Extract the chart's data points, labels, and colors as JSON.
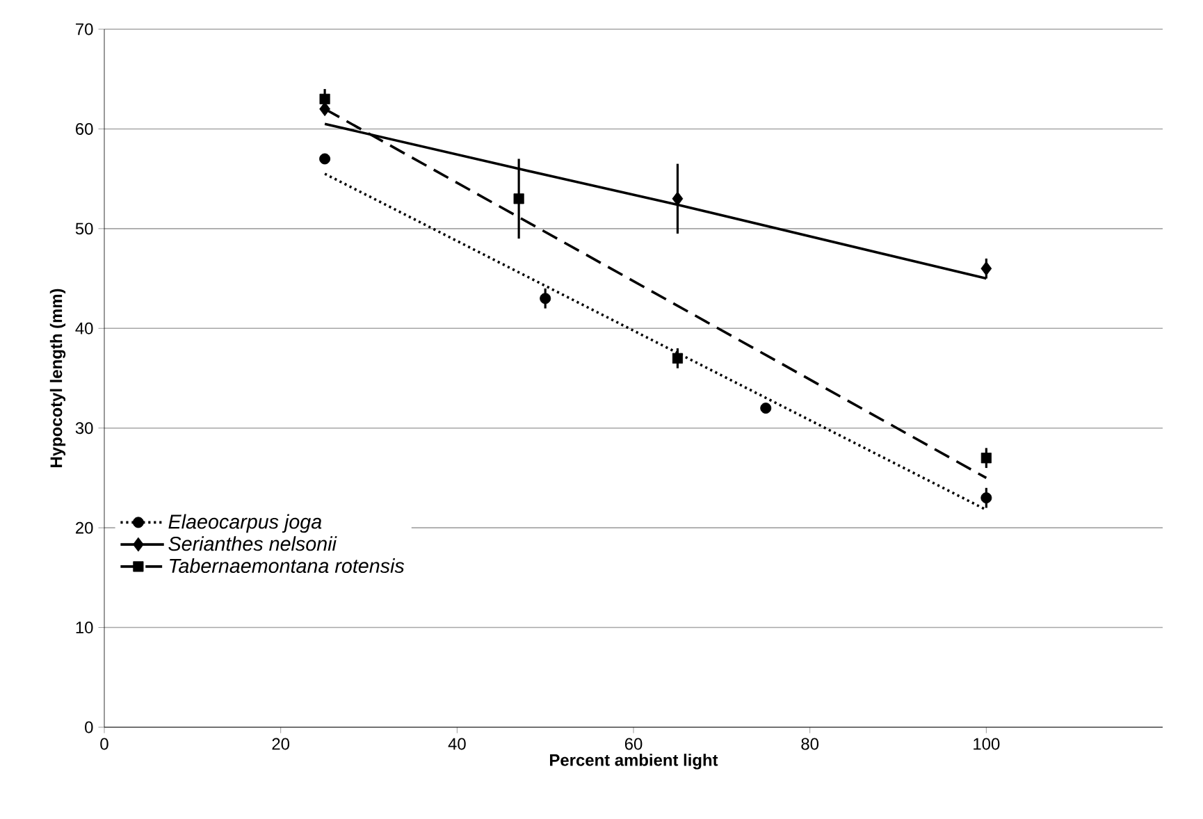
{
  "chart_data": {
    "type": "scatter",
    "xlabel": "Percent ambient light",
    "ylabel": "Hypocotyl length (mm)",
    "xlim": [
      0,
      120
    ],
    "xticks": [
      0,
      20,
      40,
      60,
      80,
      100
    ],
    "ylim": [
      0,
      70
    ],
    "yticks": [
      0,
      10,
      20,
      30,
      40,
      50,
      60,
      70
    ],
    "grid": "y",
    "legend": "bottom left",
    "series": [
      {
        "name": "Elaeocarpus joga",
        "marker": "circle",
        "color": "#000000",
        "x": [
          25,
          50,
          65,
          75,
          100
        ],
        "values": [
          57,
          43,
          null,
          32,
          23
        ],
        "errors": [
          0.5,
          1,
          null,
          0.5,
          1
        ]
      },
      {
        "name": "Serianthes nelsonii",
        "marker": "diamond",
        "color": "#000000",
        "x": [
          25,
          65,
          100
        ],
        "values": [
          62,
          53,
          46
        ],
        "errors": [
          null,
          3.5,
          1
        ]
      },
      {
        "name": "Tabernaemontana rotensis",
        "marker": "square",
        "color": "#000000",
        "x": [
          25,
          47,
          65,
          100
        ],
        "values": [
          63,
          53,
          37,
          27
        ],
        "errors": [
          1,
          4,
          1,
          1
        ]
      },
      {
        "type": "line",
        "line_style": "dotted",
        "color": "#000000",
        "x": [
          25,
          100
        ],
        "values": [
          55.5,
          21.8
        ]
      },
      {
        "type": "line",
        "line_style": "solid",
        "color": "#000000",
        "x": [
          25,
          47,
          65,
          100
        ],
        "values": [
          60.5,
          56,
          52.4,
          45
        ]
      },
      {
        "type": "line",
        "line_style": "dashed",
        "color": "#000000",
        "x": [
          25,
          100
        ],
        "values": [
          62,
          25
        ]
      }
    ]
  }
}
